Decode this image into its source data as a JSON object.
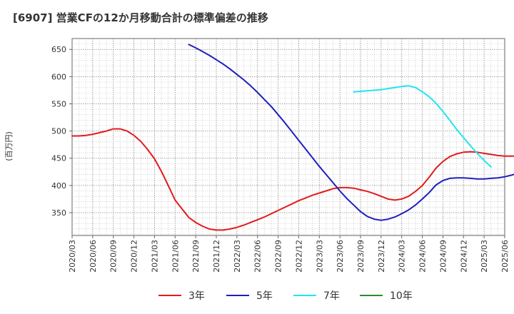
{
  "chart_data": {
    "type": "line",
    "title": "[6907]  営業CFの12か月移動合計の標準偏差の推移",
    "ylabel": "(百万円)",
    "xlabel": "",
    "ylim": [
      308,
      670
    ],
    "yticks": [
      350,
      400,
      450,
      500,
      550,
      600,
      650
    ],
    "xticks": [
      "2020/03",
      "2020/06",
      "2020/09",
      "2020/12",
      "2021/03",
      "2021/06",
      "2021/09",
      "2021/12",
      "2022/03",
      "2022/06",
      "2022/09",
      "2022/12",
      "2023/03",
      "2023/06",
      "2023/09",
      "2023/12",
      "2024/03",
      "2024/06",
      "2024/09",
      "2024/12",
      "2025/03",
      "2025/06"
    ],
    "grid": true,
    "legend_position": "bottom",
    "series": [
      {
        "name": "3年",
        "color": "#e31a1c",
        "start": "2020/03",
        "values": [
          491,
          491,
          492,
          494,
          497,
          500,
          504,
          504,
          500,
          492,
          481,
          466,
          449,
          426,
          400,
          373,
          357,
          341,
          332,
          325,
          320,
          318,
          318,
          320,
          323,
          327,
          332,
          337,
          342,
          348,
          354,
          360,
          366,
          372,
          377,
          382,
          386,
          390,
          394,
          396,
          396,
          395,
          392,
          389,
          385,
          380,
          375,
          373,
          375,
          380,
          389,
          400,
          415,
          432,
          444,
          453,
          458,
          461,
          462,
          461,
          459,
          457,
          455,
          454,
          454,
          454,
          455,
          458,
          463
        ]
      },
      {
        "name": "5年",
        "color": "#1f1fbf",
        "start": "2021/08",
        "values": [
          659,
          653,
          646,
          639,
          631,
          623,
          614,
          604,
          594,
          583,
          571,
          558,
          545,
          530,
          515,
          499,
          483,
          467,
          451,
          435,
          420,
          405,
          390,
          376,
          364,
          352,
          343,
          338,
          336,
          338,
          342,
          348,
          355,
          364,
          375,
          387,
          401,
          409,
          413,
          414,
          414,
          413,
          412,
          412,
          413,
          414,
          416,
          419,
          423,
          428,
          434
        ]
      },
      {
        "name": "7年",
        "color": "#22e5ef",
        "start": "2023/08",
        "values": [
          572,
          573,
          574,
          575,
          576,
          578,
          580,
          582,
          583,
          580,
          572,
          563,
          551,
          536,
          520,
          503,
          488,
          473,
          459,
          446,
          434
        ]
      },
      {
        "name": "10年",
        "color": "#2e8b2e",
        "values": []
      }
    ]
  }
}
